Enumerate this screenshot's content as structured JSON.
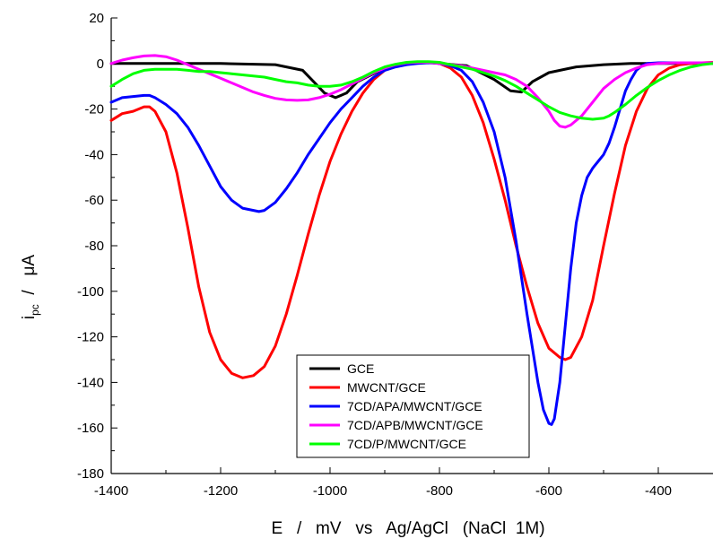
{
  "chart_data": {
    "type": "line",
    "xlabel": "E   /   mV   vs   Ag/AgCl   (NaCl  1M)",
    "ylabel_main": "i",
    "ylabel_sub": "pc",
    "ylabel_rest": "  /   μA",
    "xlim": [
      -1400,
      -300
    ],
    "ylim": [
      -180,
      20
    ],
    "x_ticks": [
      -1400,
      -1200,
      -1000,
      -800,
      -600,
      -400
    ],
    "y_ticks": [
      20,
      0,
      -20,
      -40,
      -60,
      -80,
      -100,
      -120,
      -140,
      -160,
      -180
    ],
    "grid": false,
    "legend_position": "bottom-center",
    "series": [
      {
        "name": "GCE",
        "color": "#000000",
        "x": [
          -1400,
          -1300,
          -1200,
          -1100,
          -1050,
          -1030,
          -1010,
          -990,
          -970,
          -950,
          -900,
          -850,
          -820,
          -800,
          -750,
          -700,
          -670,
          -650,
          -630,
          -600,
          -550,
          -500,
          -450,
          -400,
          -350,
          -300
        ],
        "y": [
          0,
          0,
          0,
          -0.5,
          -3,
          -8,
          -13,
          -15,
          -13,
          -8,
          -2,
          0,
          0.5,
          0,
          -1,
          -7,
          -12,
          -12.5,
          -8,
          -4,
          -1.5,
          -0.5,
          0,
          0,
          0,
          0
        ]
      },
      {
        "name": "MWCNT/GCE",
        "color": "#ff0000",
        "x": [
          -1400,
          -1380,
          -1360,
          -1340,
          -1330,
          -1320,
          -1300,
          -1280,
          -1260,
          -1240,
          -1220,
          -1200,
          -1180,
          -1160,
          -1140,
          -1120,
          -1100,
          -1080,
          -1060,
          -1040,
          -1020,
          -1000,
          -980,
          -960,
          -940,
          -920,
          -900,
          -880,
          -860,
          -840,
          -820,
          -800,
          -780,
          -760,
          -740,
          -720,
          -700,
          -680,
          -660,
          -640,
          -620,
          -600,
          -580,
          -570,
          -560,
          -540,
          -520,
          -500,
          -480,
          -460,
          -440,
          -420,
          -400,
          -380,
          -360,
          -340,
          -320,
          -300
        ],
        "y": [
          -25,
          -22,
          -21,
          -19,
          -19,
          -21,
          -30,
          -48,
          -72,
          -98,
          -118,
          -130,
          -136,
          -138,
          -137,
          -133,
          -124,
          -110,
          -93,
          -75,
          -58,
          -43,
          -31,
          -21,
          -13,
          -7,
          -3,
          -1,
          0,
          0.5,
          0.5,
          0,
          -2,
          -6,
          -14,
          -26,
          -42,
          -60,
          -80,
          -98,
          -114,
          -125,
          -129,
          -130,
          -129,
          -120,
          -104,
          -80,
          -57,
          -36,
          -21,
          -11,
          -5,
          -2,
          -0.5,
          0,
          0.3,
          0.5
        ]
      },
      {
        "name": "7CD/APA/MWCNT/GCE",
        "color": "#0000ff",
        "x": [
          -1400,
          -1380,
          -1360,
          -1340,
          -1330,
          -1320,
          -1300,
          -1280,
          -1260,
          -1240,
          -1220,
          -1200,
          -1180,
          -1160,
          -1140,
          -1130,
          -1120,
          -1100,
          -1080,
          -1060,
          -1040,
          -1020,
          -1000,
          -980,
          -960,
          -940,
          -920,
          -900,
          -880,
          -860,
          -840,
          -820,
          -800,
          -780,
          -760,
          -740,
          -720,
          -700,
          -680,
          -660,
          -640,
          -620,
          -610,
          -600,
          -595,
          -590,
          -580,
          -570,
          -560,
          -550,
          -540,
          -530,
          -520,
          -510,
          -500,
          -490,
          -480,
          -470,
          -460,
          -450,
          -440,
          -430,
          -420,
          -400,
          -380,
          -360,
          -340,
          -320,
          -300
        ],
        "y": [
          -17,
          -15,
          -14.5,
          -14,
          -14,
          -15,
          -18,
          -22,
          -28,
          -36,
          -45,
          -54,
          -60,
          -63.5,
          -64.5,
          -65,
          -64.5,
          -61,
          -55,
          -48,
          -40,
          -33,
          -26,
          -20,
          -15,
          -10,
          -6,
          -3,
          -1.5,
          -0.5,
          0,
          0.3,
          0,
          -1,
          -3,
          -8,
          -17,
          -30,
          -50,
          -78,
          -110,
          -140,
          -152,
          -158,
          -158.5,
          -156,
          -140,
          -115,
          -90,
          -70,
          -58,
          -50,
          -46,
          -43,
          -40,
          -35,
          -28,
          -20,
          -12,
          -7,
          -3,
          -1,
          0,
          0.3,
          0.3,
          0.3,
          0.3,
          0.3,
          0.3
        ]
      },
      {
        "name": "7CD/APB/MWCNT/GCE",
        "color": "#ff00ff",
        "x": [
          -1400,
          -1380,
          -1360,
          -1340,
          -1320,
          -1300,
          -1280,
          -1260,
          -1240,
          -1220,
          -1200,
          -1180,
          -1160,
          -1140,
          -1120,
          -1100,
          -1080,
          -1060,
          -1040,
          -1020,
          -1000,
          -980,
          -960,
          -940,
          -920,
          -900,
          -880,
          -860,
          -840,
          -820,
          -800,
          -780,
          -760,
          -740,
          -720,
          -700,
          -680,
          -660,
          -640,
          -620,
          -600,
          -590,
          -580,
          -570,
          -560,
          -540,
          -520,
          -500,
          -480,
          -460,
          -440,
          -420,
          -400,
          -380,
          -360,
          -340,
          -320,
          -300
        ],
        "y": [
          0,
          1.5,
          2.5,
          3.3,
          3.5,
          3,
          1.5,
          -0.5,
          -2.5,
          -4.5,
          -6.5,
          -8.5,
          -10.5,
          -12.5,
          -14,
          -15.3,
          -16,
          -16.2,
          -16,
          -15,
          -13.5,
          -11.5,
          -9,
          -6.5,
          -4,
          -2,
          -0.5,
          0.3,
          0.5,
          0.5,
          0,
          -0.5,
          -1,
          -2,
          -3,
          -4,
          -5,
          -7,
          -10,
          -15,
          -21,
          -25,
          -27.5,
          -28,
          -27,
          -23,
          -17,
          -11,
          -7,
          -4,
          -2,
          -0.5,
          0,
          0.2,
          0.3,
          0.3,
          0.3,
          0.3
        ]
      },
      {
        "name": "7CD/P/MWCNT/GCE",
        "color": "#00ff00",
        "x": [
          -1400,
          -1380,
          -1360,
          -1340,
          -1320,
          -1300,
          -1280,
          -1260,
          -1240,
          -1220,
          -1200,
          -1180,
          -1160,
          -1140,
          -1120,
          -1100,
          -1080,
          -1060,
          -1040,
          -1020,
          -1000,
          -980,
          -960,
          -940,
          -920,
          -900,
          -880,
          -860,
          -840,
          -820,
          -800,
          -780,
          -760,
          -740,
          -720,
          -700,
          -680,
          -660,
          -640,
          -620,
          -600,
          -580,
          -560,
          -540,
          -520,
          -500,
          -490,
          -480,
          -460,
          -440,
          -420,
          -400,
          -380,
          -360,
          -340,
          -320,
          -300
        ],
        "y": [
          -10,
          -7,
          -4.5,
          -3,
          -2.5,
          -2.5,
          -2.5,
          -3,
          -3.5,
          -3.5,
          -4,
          -4.5,
          -5,
          -5.5,
          -6,
          -7,
          -8,
          -8.5,
          -9.5,
          -10,
          -10,
          -9.5,
          -8,
          -6,
          -3.5,
          -1.5,
          -0.3,
          0.5,
          0.8,
          0.8,
          0.5,
          -0.5,
          -1.5,
          -2.5,
          -4,
          -5.5,
          -7.5,
          -10,
          -13,
          -16,
          -19,
          -21.5,
          -23,
          -24,
          -24.5,
          -24,
          -23,
          -21.5,
          -18,
          -14,
          -10.5,
          -7.5,
          -5,
          -3,
          -1.5,
          -0.5,
          0
        ]
      }
    ]
  }
}
